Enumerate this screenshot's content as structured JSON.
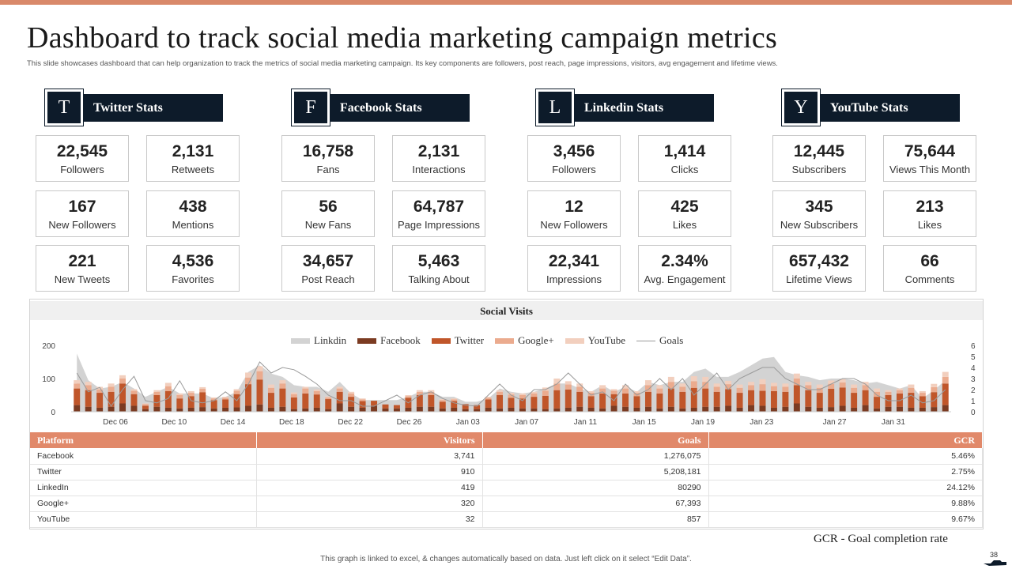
{
  "header": {
    "title": "Dashboard to track social media marketing campaign metrics",
    "subtitle": "This slide showcases dashboard that can help organization to track the metrics of social media marketing campaign. Its key components are followers, post reach, page impressions, visitors, avg engagement and lifetime views."
  },
  "colors": {
    "accent_bar": "#d9896a",
    "navy": "#0d1b2a",
    "table_header": "#e1896a",
    "linkdin": "#d3d3d3",
    "facebook": "#7b3b22",
    "twitter": "#c0562a",
    "googleplus": "#ebab8e",
    "youtube": "#f2cfbe",
    "goals": "#9a9a9a"
  },
  "platforms": [
    {
      "letter": "T",
      "label": "Twitter Stats",
      "stats": [
        {
          "value": "22,545",
          "label": "Followers"
        },
        {
          "value": "2,131",
          "label": "Retweets"
        },
        {
          "value": "167",
          "label": "New Followers"
        },
        {
          "value": "438",
          "label": "Mentions"
        },
        {
          "value": "221",
          "label": "New Tweets"
        },
        {
          "value": "4,536",
          "label": "Favorites"
        }
      ]
    },
    {
      "letter": "F",
      "label": "Facebook Stats",
      "stats": [
        {
          "value": "16,758",
          "label": "Fans"
        },
        {
          "value": "2,131",
          "label": "Interactions"
        },
        {
          "value": "56",
          "label": "New Fans"
        },
        {
          "value": "64,787",
          "label": "Page Impressions"
        },
        {
          "value": "34,657",
          "label": "Post Reach"
        },
        {
          "value": "5,463",
          "label": "Talking About"
        }
      ]
    },
    {
      "letter": "L",
      "label": "Linkedin Stats",
      "stats": [
        {
          "value": "3,456",
          "label": "Followers"
        },
        {
          "value": "1,414",
          "label": "Clicks"
        },
        {
          "value": "12",
          "label": "New Followers"
        },
        {
          "value": "425",
          "label": "Likes"
        },
        {
          "value": "22,341",
          "label": "Impressions"
        },
        {
          "value": "2.34%",
          "label": "Avg. Engagement"
        }
      ]
    },
    {
      "letter": "Y",
      "label": "YouTube Stats",
      "stats": [
        {
          "value": "12,445",
          "label": "Subscribers"
        },
        {
          "value": "75,644",
          "label": "Views This Month"
        },
        {
          "value": "345",
          "label": "New Subscribers"
        },
        {
          "value": "213",
          "label": "Likes"
        },
        {
          "value": "657,432",
          "label": "Lifetime Views"
        },
        {
          "value": "66",
          "label": "Comments"
        }
      ]
    }
  ],
  "chart_data": {
    "type": "bar",
    "title": "Social Visits",
    "xlabel": "",
    "ylabel": "",
    "ylim": [
      0,
      200
    ],
    "y2lim": [
      0,
      6
    ],
    "yticks": [
      "0",
      "100",
      "200"
    ],
    "y2ticks": [
      "0",
      "1",
      "2",
      "3",
      "4",
      "5",
      "6"
    ],
    "x_tick_labels": [
      "Dec 06",
      "Dec 10",
      "Dec 14",
      "Dec 18",
      "Dec 22",
      "Dec 26",
      "Jan 03",
      "Jan 07",
      "Jan 11",
      "Jan 15",
      "Jan 19",
      "Jan 23",
      "Jan 27",
      "Jan 31"
    ],
    "legend": [
      "Linkdin",
      "Facebook",
      "Twitter",
      "Google+",
      "YouTube",
      "Goals"
    ],
    "stacked_series": [
      {
        "name": "Facebook",
        "values": [
          20,
          15,
          12,
          15,
          25,
          18,
          8,
          15,
          12,
          10,
          12,
          14,
          10,
          12,
          13,
          18,
          22,
          12,
          15,
          8,
          10,
          12,
          8,
          25,
          15,
          12,
          18,
          10,
          10,
          12,
          15,
          15,
          10,
          12,
          8,
          8,
          12,
          10,
          12,
          10,
          10,
          8,
          10,
          12,
          15,
          12,
          10,
          18,
          15,
          12,
          15,
          10,
          15,
          10,
          12,
          15,
          15,
          18,
          12,
          20,
          18,
          12,
          15,
          25,
          15,
          12,
          14,
          18,
          12,
          20,
          10,
          15,
          15,
          12,
          12,
          14,
          20
        ]
      },
      {
        "name": "Twitter",
        "values": [
          50,
          50,
          45,
          45,
          60,
          35,
          10,
          35,
          50,
          30,
          35,
          45,
          25,
          25,
          40,
          65,
          75,
          45,
          55,
          35,
          45,
          40,
          30,
          35,
          30,
          20,
          15,
          12,
          10,
          30,
          35,
          35,
          20,
          20,
          15,
          12,
          25,
          40,
          30,
          30,
          35,
          40,
          55,
          55,
          45,
          35,
          45,
          35,
          40,
          35,
          45,
          45,
          55,
          50,
          60,
          55,
          45,
          50,
          45,
          45,
          45,
          50,
          45,
          55,
          50,
          45,
          55,
          55,
          45,
          45,
          35,
          35,
          40,
          45,
          35,
          45,
          65
        ]
      },
      {
        "name": "Google+",
        "values": [
          15,
          15,
          10,
          15,
          15,
          10,
          5,
          10,
          15,
          10,
          10,
          10,
          5,
          5,
          10,
          20,
          25,
          15,
          15,
          10,
          15,
          10,
          5,
          10,
          10,
          5,
          0,
          0,
          0,
          5,
          10,
          10,
          5,
          5,
          0,
          0,
          5,
          10,
          10,
          10,
          10,
          15,
          20,
          15,
          15,
          10,
          15,
          10,
          15,
          10,
          20,
          15,
          20,
          15,
          20,
          20,
          15,
          15,
          15,
          15,
          20,
          15,
          15,
          20,
          15,
          15,
          15,
          15,
          15,
          15,
          15,
          10,
          10,
          15,
          10,
          15,
          20
        ]
      },
      {
        "name": "YouTube",
        "values": [
          10,
          10,
          8,
          10,
          10,
          5,
          2,
          5,
          10,
          5,
          5,
          5,
          3,
          3,
          5,
          15,
          15,
          10,
          10,
          5,
          5,
          5,
          3,
          5,
          5,
          3,
          0,
          0,
          0,
          3,
          5,
          5,
          3,
          3,
          0,
          0,
          3,
          5,
          5,
          5,
          5,
          10,
          15,
          10,
          10,
          5,
          10,
          5,
          10,
          5,
          15,
          10,
          15,
          10,
          15,
          15,
          10,
          10,
          10,
          10,
          15,
          10,
          10,
          15,
          10,
          10,
          10,
          10,
          10,
          10,
          10,
          5,
          5,
          10,
          5,
          10,
          15
        ]
      }
    ],
    "linkdin_area_values": [
      175,
      95,
      70,
      75,
      90,
      70,
      45,
      60,
      75,
      55,
      55,
      55,
      40,
      45,
      60,
      120,
      140,
      115,
      105,
      80,
      75,
      75,
      60,
      90,
      55,
      35,
      35,
      35,
      35,
      45,
      60,
      60,
      45,
      45,
      30,
      30,
      40,
      70,
      60,
      55,
      60,
      70,
      85,
      85,
      70,
      60,
      80,
      60,
      75,
      60,
      90,
      80,
      90,
      90,
      120,
      130,
      105,
      105,
      120,
      140,
      160,
      165,
      120,
      110,
      105,
      95,
      100,
      100,
      95,
      85,
      90,
      80,
      70,
      80,
      40,
      65,
      95
    ],
    "goals_values": [
      3.5,
      1.8,
      2.2,
      0.5,
      2.0,
      3.2,
      1.0,
      0.8,
      1.2,
      2.8,
      1.0,
      0.8,
      1.0,
      1.8,
      1.0,
      2.5,
      4.5,
      3.5,
      4.0,
      3.8,
      3.2,
      2.5,
      1.5,
      1.0,
      1.0,
      0.5,
      0.5,
      1.0,
      1.5,
      0.8,
      1.5,
      1.8,
      1.2,
      0.8,
      0.6,
      0.5,
      1.5,
      2.5,
      1.5,
      1.0,
      2.0,
      2.0,
      2.5,
      3.5,
      2.5,
      1.5,
      1.8,
      1.0,
      2.5,
      1.5,
      2.0,
      3.0,
      2.0,
      3.0,
      1.5,
      2.5,
      3.5,
      2.0,
      3.0,
      3.5,
      4.0,
      4.0,
      3.0,
      2.5,
      2.0,
      2.0,
      2.5,
      3.0,
      3.0,
      2.5,
      1.5,
      1.0,
      1.0,
      1.5,
      0.8,
      1.0,
      2.0
    ]
  },
  "table": {
    "headers": [
      "Platform",
      "Visitors",
      "Goals",
      "GCR"
    ],
    "rows": [
      [
        "Facebook",
        "3,741",
        "1,276,075",
        "5.46%"
      ],
      [
        "Twitter",
        "910",
        "5,208,181",
        "2.75%"
      ],
      [
        "LinkedIn",
        "419",
        "80290",
        "24.12%"
      ],
      [
        "Google+",
        "320",
        "67,393",
        "9.88%"
      ],
      [
        "YouTube",
        "32",
        "857",
        "9.67%"
      ]
    ]
  },
  "notes": {
    "gcr_note": "GCR - Goal completion rate",
    "footer": "This graph is linked to excel, & changes automatically based on data. Just left click on it select “Edit Data”.",
    "page_number": "38"
  }
}
